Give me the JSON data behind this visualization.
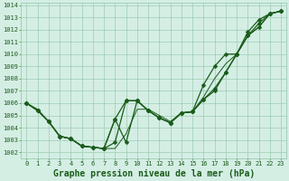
{
  "title": "Graphe pression niveau de la mer (hPa)",
  "xlim": [
    -0.5,
    23.5
  ],
  "ylim": [
    1001.5,
    1014.2
  ],
  "yticks": [
    1002,
    1003,
    1004,
    1005,
    1006,
    1007,
    1008,
    1009,
    1010,
    1011,
    1012,
    1013,
    1014
  ],
  "xticks": [
    0,
    1,
    2,
    3,
    4,
    5,
    6,
    7,
    8,
    9,
    10,
    11,
    12,
    13,
    14,
    15,
    16,
    17,
    18,
    19,
    20,
    21,
    22,
    23
  ],
  "background_color": "#d4eee4",
  "grid_color": "#90c4a8",
  "line_color": "#1a5c1a",
  "series": [
    {
      "y": [
        1006.0,
        1005.4,
        1004.5,
        1003.3,
        1003.1,
        1002.5,
        1002.4,
        1002.3,
        1004.7,
        1002.8,
        1006.2,
        1005.4,
        1004.8,
        1004.4,
        1005.2,
        1005.3,
        1006.3,
        1007.0,
        1008.5,
        1010.0,
        1011.5,
        1012.5,
        1013.3,
        1013.5
      ],
      "marker": "D",
      "ms": 2.5,
      "lw": 0.9
    },
    {
      "y": [
        1006.0,
        1005.4,
        1004.5,
        1003.3,
        1003.1,
        1002.5,
        1002.4,
        1002.3,
        1004.7,
        1006.2,
        1006.2,
        1005.4,
        1004.8,
        1004.4,
        1005.2,
        1005.3,
        1006.3,
        1007.2,
        1008.5,
        1010.0,
        1011.8,
        1012.8,
        1013.3,
        1013.5
      ],
      "marker": "D",
      "ms": 2.5,
      "lw": 0.9
    },
    {
      "y": [
        1006.0,
        1005.4,
        1004.5,
        1003.3,
        1003.1,
        1002.5,
        1002.4,
        1002.3,
        1002.8,
        1006.2,
        1006.2,
        1005.4,
        1004.8,
        1004.4,
        1005.2,
        1005.3,
        1007.5,
        1009.0,
        1010.0,
        1010.0,
        1011.5,
        1012.2,
        1013.3,
        1013.5
      ],
      "marker": "D",
      "ms": 2.5,
      "lw": 0.9
    },
    {
      "y": [
        1006.0,
        1005.5,
        1004.5,
        1003.3,
        1003.1,
        1002.5,
        1002.4,
        1002.3,
        1002.3,
        1003.5,
        1005.5,
        1005.5,
        1005.0,
        1004.5,
        1005.2,
        1005.3,
        1006.5,
        1008.0,
        1009.2,
        1010.0,
        1011.5,
        1012.2,
        1013.3,
        1013.5
      ],
      "marker": null,
      "ms": 0,
      "lw": 0.7
    }
  ],
  "title_fontsize": 7,
  "tick_fontsize": 5.0
}
